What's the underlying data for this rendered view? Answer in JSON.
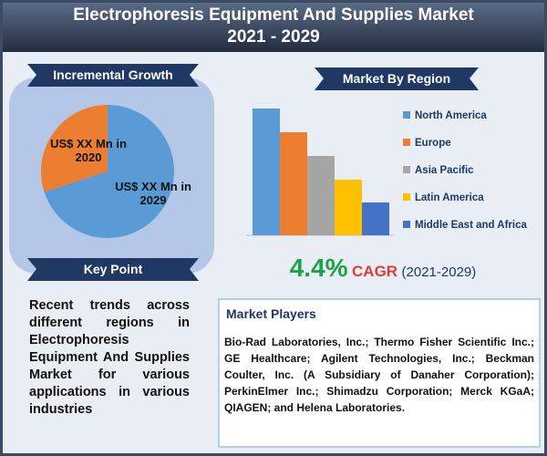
{
  "header": {
    "title": "Electrophoresis Equipment And Supplies Market",
    "subtitle": "2021 - 2029"
  },
  "chart_data": [
    {
      "type": "pie",
      "title": "Incremental Growth",
      "categories": [
        "US$ XX Mn in 2020",
        "US$ XX Mn in 2029"
      ],
      "values": [
        30,
        70
      ],
      "colors": [
        "#ed7d31",
        "#5b9bd5"
      ]
    },
    {
      "type": "bar",
      "title": "Market By Region",
      "categories": [
        "North America",
        "Europe",
        "Asia Pacific",
        "Latin America",
        "Middle East and Africa"
      ],
      "values": [
        139,
        113,
        87,
        61,
        36
      ],
      "colors": [
        "#5b9bd5",
        "#ed7d31",
        "#a5a5a5",
        "#ffc000",
        "#4472c4"
      ]
    }
  ],
  "cagr": {
    "value": "4.4%",
    "label": "CAGR",
    "period": "(2021-2029)"
  },
  "key_point": {
    "heading": "Key Point",
    "text": "Recent trends across different regions in Electrophoresis Equipment And Supplies Market for various applications in various industries"
  },
  "market_players": {
    "heading": "Market Players",
    "text": "Bio-Rad Laboratories, Inc.; Thermo Fisher Scientific Inc.; GE Healthcare; Agilent Technologies, Inc.; Beckman Coulter, Inc. (A Subsidiary of Danaher Corporation); PerkinElmer Inc.; Shimadzu Corporation; Merck KGaA; QIAGEN; and Helena Laboratories."
  }
}
